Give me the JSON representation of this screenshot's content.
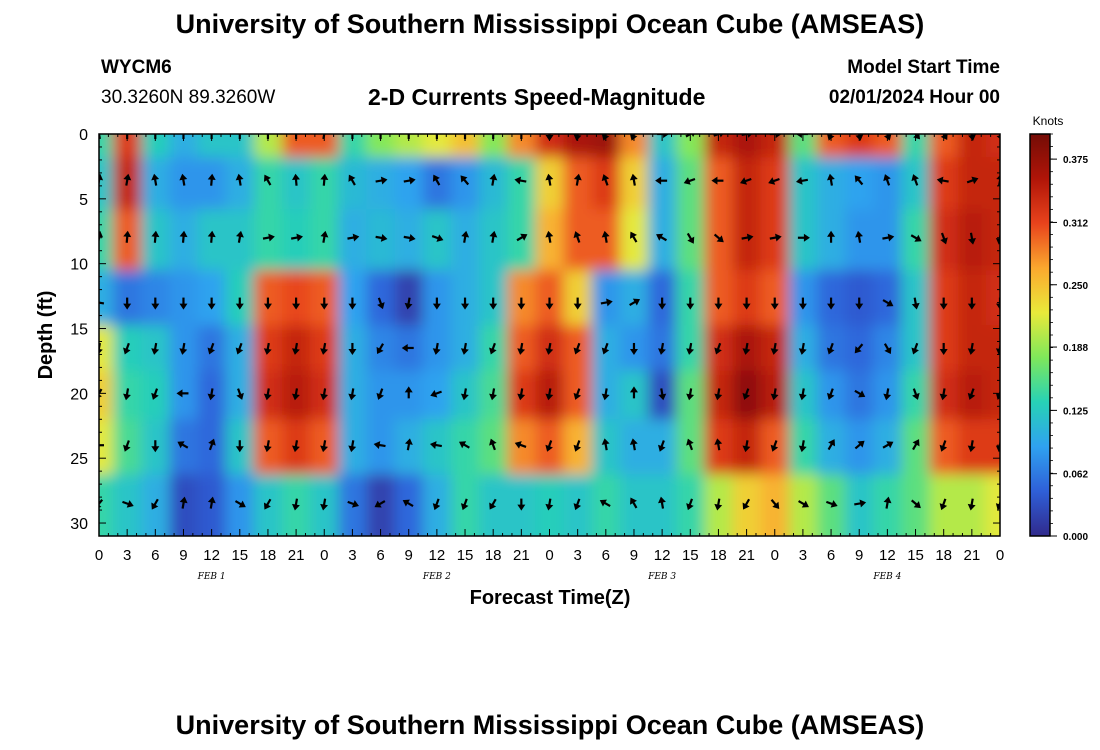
{
  "title": "University of Southern Mississippi Ocean Cube (AMSEAS)",
  "station": {
    "id": "WYCM6",
    "coords": "30.3260N  89.3260W"
  },
  "model": {
    "label": "Model Start Time",
    "start": "02/01/2024 Hour 00"
  },
  "chart_data": {
    "type": "heatmap",
    "title": "2-D Currents Speed-Magnitude",
    "xlabel": "Forecast Time(Z)",
    "ylabel": "Depth (ft)",
    "xlim": [
      0,
      96
    ],
    "ylim": [
      0,
      31
    ],
    "y_inverted": true,
    "x_ticks": [
      {
        "h": 0,
        "label": "0"
      },
      {
        "h": 3,
        "label": "3"
      },
      {
        "h": 6,
        "label": "6"
      },
      {
        "h": 9,
        "label": "9"
      },
      {
        "h": 12,
        "label": "12"
      },
      {
        "h": 15,
        "label": "15"
      },
      {
        "h": 18,
        "label": "18"
      },
      {
        "h": 21,
        "label": "21"
      },
      {
        "h": 24,
        "label": "0"
      },
      {
        "h": 27,
        "label": "3"
      },
      {
        "h": 30,
        "label": "6"
      },
      {
        "h": 33,
        "label": "9"
      },
      {
        "h": 36,
        "label": "12"
      },
      {
        "h": 39,
        "label": "15"
      },
      {
        "h": 42,
        "label": "18"
      },
      {
        "h": 45,
        "label": "21"
      },
      {
        "h": 48,
        "label": "0"
      },
      {
        "h": 51,
        "label": "3"
      },
      {
        "h": 54,
        "label": "6"
      },
      {
        "h": 57,
        "label": "9"
      },
      {
        "h": 60,
        "label": "12"
      },
      {
        "h": 63,
        "label": "15"
      },
      {
        "h": 66,
        "label": "18"
      },
      {
        "h": 69,
        "label": "21"
      },
      {
        "h": 72,
        "label": "0"
      },
      {
        "h": 75,
        "label": "3"
      },
      {
        "h": 78,
        "label": "6"
      },
      {
        "h": 81,
        "label": "9"
      },
      {
        "h": 84,
        "label": "12"
      },
      {
        "h": 87,
        "label": "15"
      },
      {
        "h": 90,
        "label": "18"
      },
      {
        "h": 93,
        "label": "21"
      },
      {
        "h": 96,
        "label": "0"
      }
    ],
    "date_labels": [
      {
        "h": 12,
        "label": "FEB 1"
      },
      {
        "h": 36,
        "label": "FEB 2"
      },
      {
        "h": 60,
        "label": "FEB 3"
      },
      {
        "h": 84,
        "label": "FEB 4"
      }
    ],
    "y_ticks": [
      0,
      5,
      10,
      15,
      20,
      25,
      30
    ],
    "colorbar": {
      "label": "Knots",
      "min": 0.0,
      "max": 0.4,
      "ticks": [
        "0.000",
        "0.062",
        "0.125",
        "0.188",
        "0.250",
        "0.312",
        "0.375"
      ],
      "colors": [
        "#302a8c",
        "#2f5fd8",
        "#2fa2f0",
        "#27d2b6",
        "#7fe85a",
        "#e9e93a",
        "#fba82e",
        "#e8431c",
        "#b01508",
        "#740c06"
      ]
    },
    "depth_levels_ft": [
      0,
      3.6,
      8,
      13,
      16.5,
      20,
      24,
      28.5
    ],
    "time_hours": [
      0,
      3,
      6,
      9,
      12,
      15,
      18,
      21,
      24,
      27,
      30,
      33,
      36,
      39,
      42,
      45,
      48,
      51,
      54,
      57,
      60,
      63,
      66,
      69,
      72,
      75,
      78,
      81,
      84,
      87,
      90,
      93,
      96
    ],
    "speed_knots": [
      [
        0.14,
        0.32,
        0.13,
        0.1,
        0.12,
        0.12,
        0.2,
        0.3,
        0.3,
        0.14,
        0.18,
        0.2,
        0.22,
        0.25,
        0.18,
        0.28,
        0.33,
        0.36,
        0.37,
        0.28,
        0.12,
        0.18,
        0.34,
        0.36,
        0.34,
        0.16,
        0.3,
        0.32,
        0.3,
        0.14,
        0.3,
        0.34,
        0.33
      ],
      [
        0.12,
        0.34,
        0.1,
        0.08,
        0.08,
        0.1,
        0.14,
        0.12,
        0.14,
        0.11,
        0.1,
        0.09,
        0.06,
        0.08,
        0.11,
        0.14,
        0.24,
        0.3,
        0.32,
        0.24,
        0.1,
        0.16,
        0.3,
        0.34,
        0.32,
        0.12,
        0.1,
        0.09,
        0.08,
        0.12,
        0.32,
        0.34,
        0.34
      ],
      [
        0.14,
        0.3,
        0.12,
        0.1,
        0.12,
        0.12,
        0.14,
        0.13,
        0.14,
        0.1,
        0.11,
        0.1,
        0.12,
        0.1,
        0.12,
        0.14,
        0.26,
        0.3,
        0.3,
        0.22,
        0.1,
        0.16,
        0.3,
        0.34,
        0.32,
        0.12,
        0.1,
        0.08,
        0.08,
        0.14,
        0.33,
        0.35,
        0.34
      ],
      [
        0.1,
        0.06,
        0.07,
        0.08,
        0.09,
        0.13,
        0.3,
        0.31,
        0.3,
        0.09,
        0.05,
        0.02,
        0.08,
        0.1,
        0.12,
        0.28,
        0.3,
        0.24,
        0.08,
        0.1,
        0.05,
        0.14,
        0.3,
        0.32,
        0.3,
        0.08,
        0.05,
        0.04,
        0.05,
        0.12,
        0.32,
        0.34,
        0.33
      ],
      [
        0.22,
        0.13,
        0.12,
        0.08,
        0.06,
        0.1,
        0.32,
        0.34,
        0.32,
        0.1,
        0.07,
        0.06,
        0.08,
        0.1,
        0.14,
        0.3,
        0.33,
        0.3,
        0.1,
        0.08,
        0.06,
        0.14,
        0.33,
        0.36,
        0.34,
        0.1,
        0.06,
        0.05,
        0.07,
        0.12,
        0.32,
        0.34,
        0.34
      ],
      [
        0.24,
        0.14,
        0.13,
        0.08,
        0.05,
        0.1,
        0.33,
        0.35,
        0.33,
        0.1,
        0.08,
        0.08,
        0.09,
        0.12,
        0.15,
        0.32,
        0.35,
        0.3,
        0.1,
        0.12,
        0.03,
        0.16,
        0.34,
        0.38,
        0.35,
        0.12,
        0.08,
        0.06,
        0.08,
        0.14,
        0.33,
        0.35,
        0.34
      ],
      [
        0.22,
        0.15,
        0.12,
        0.06,
        0.05,
        0.12,
        0.3,
        0.32,
        0.3,
        0.1,
        0.08,
        0.1,
        0.12,
        0.14,
        0.16,
        0.28,
        0.3,
        0.26,
        0.12,
        0.1,
        0.1,
        0.16,
        0.32,
        0.34,
        0.3,
        0.14,
        0.1,
        0.08,
        0.1,
        0.16,
        0.3,
        0.32,
        0.32
      ],
      [
        0.14,
        0.12,
        0.1,
        0.03,
        0.04,
        0.08,
        0.12,
        0.14,
        0.12,
        0.06,
        0.02,
        0.05,
        0.1,
        0.14,
        0.12,
        0.12,
        0.13,
        0.12,
        0.14,
        0.12,
        0.12,
        0.14,
        0.2,
        0.24,
        0.26,
        0.2,
        0.16,
        0.12,
        0.14,
        0.16,
        0.2,
        0.2,
        0.22
      ]
    ],
    "direction_deg": [
      [
        350,
        0,
        0,
        0,
        0,
        0,
        0,
        0,
        10,
        0,
        0,
        0,
        0,
        0,
        0,
        0,
        180,
        190,
        200,
        200,
        90,
        60,
        70,
        80,
        90,
        270,
        200,
        170,
        160,
        140,
        150,
        170,
        160
      ],
      [
        10,
        10,
        350,
        350,
        5,
        350,
        330,
        355,
        5,
        330,
        80,
        80,
        330,
        320,
        10,
        280,
        350,
        10,
        340,
        350,
        270,
        250,
        270,
        250,
        250,
        260,
        350,
        320,
        340,
        340,
        280,
        70,
        10
      ],
      [
        10,
        5,
        5,
        5,
        5,
        10,
        80,
        80,
        10,
        80,
        100,
        100,
        110,
        10,
        10,
        60,
        350,
        340,
        350,
        330,
        300,
        150,
        130,
        80,
        80,
        90,
        0,
        350,
        80,
        120,
        160,
        170,
        190
      ],
      [
        280,
        180,
        180,
        180,
        180,
        180,
        180,
        180,
        180,
        180,
        160,
        190,
        180,
        180,
        180,
        180,
        180,
        180,
        80,
        60,
        180,
        180,
        180,
        180,
        180,
        180,
        180,
        180,
        120,
        170,
        180,
        180,
        180
      ],
      [
        190,
        200,
        190,
        190,
        200,
        200,
        190,
        190,
        190,
        180,
        210,
        270,
        190,
        190,
        200,
        190,
        190,
        200,
        200,
        180,
        190,
        190,
        200,
        190,
        190,
        190,
        200,
        220,
        150,
        200,
        180,
        190,
        190
      ],
      [
        210,
        190,
        200,
        270,
        190,
        160,
        190,
        190,
        190,
        190,
        200,
        360,
        250,
        190,
        190,
        190,
        190,
        200,
        190,
        360,
        170,
        190,
        190,
        200,
        190,
        190,
        200,
        120,
        190,
        160,
        190,
        200,
        200
      ],
      [
        270,
        200,
        180,
        300,
        20,
        180,
        190,
        190,
        190,
        190,
        280,
        10,
        280,
        300,
        340,
        290,
        200,
        200,
        350,
        350,
        200,
        340,
        350,
        190,
        200,
        190,
        30,
        50,
        60,
        30,
        200,
        190,
        190
      ],
      [
        220,
        110,
        210,
        10,
        10,
        120,
        210,
        190,
        190,
        110,
        240,
        300,
        200,
        200,
        210,
        180,
        190,
        200,
        300,
        330,
        350,
        200,
        190,
        210,
        140,
        120,
        110,
        80,
        10,
        130,
        200,
        190,
        200
      ]
    ]
  }
}
